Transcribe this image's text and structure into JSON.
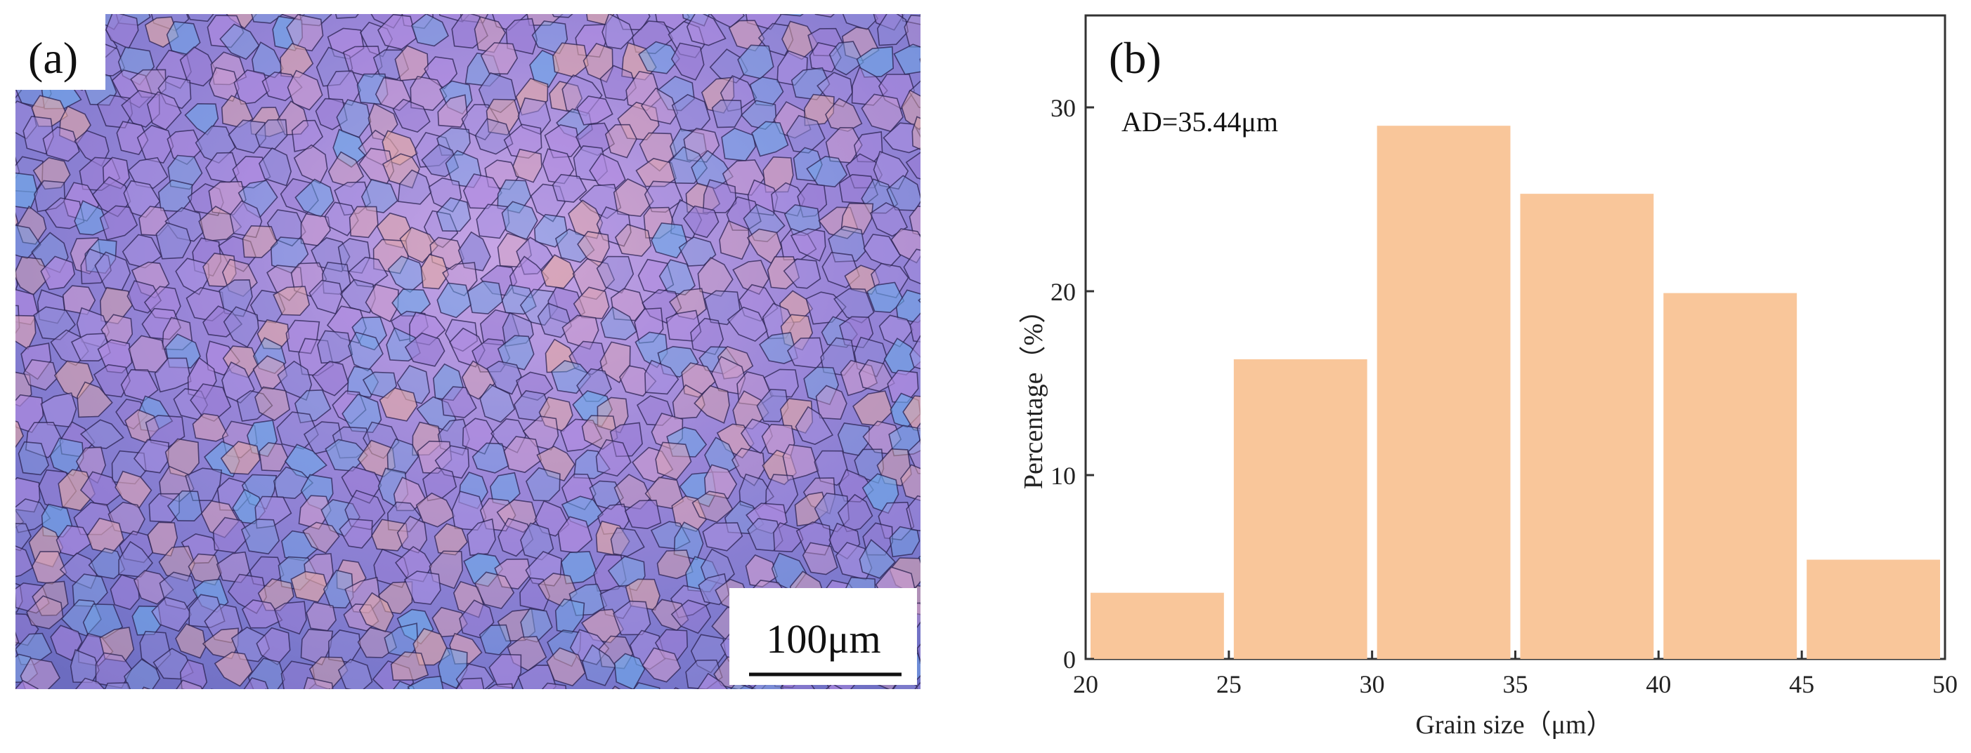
{
  "panel_a": {
    "label": "(a)",
    "scale_bar_label": "100μm",
    "image_description_icon": "micrograph-image"
  },
  "panel_b": {
    "label": "(b)"
  },
  "chart_data": {
    "type": "bar",
    "title": "",
    "annotation": "AD=35.44μm",
    "xlabel": "Grain size（μm）",
    "ylabel": "Percentage（%）",
    "bins": [
      [
        20,
        25
      ],
      [
        25,
        30
      ],
      [
        30,
        35
      ],
      [
        35,
        40
      ],
      [
        40,
        45
      ],
      [
        45,
        50
      ]
    ],
    "values": [
      3.6,
      16.3,
      29.0,
      25.3,
      19.9,
      5.4
    ],
    "xlim": [
      20,
      50
    ],
    "ylim": [
      0,
      35
    ],
    "xticks": [
      20,
      25,
      30,
      35,
      40,
      45,
      50
    ],
    "yticks": [
      0,
      10,
      20,
      30
    ],
    "bar_color": "#f9c69a",
    "grid": false
  }
}
